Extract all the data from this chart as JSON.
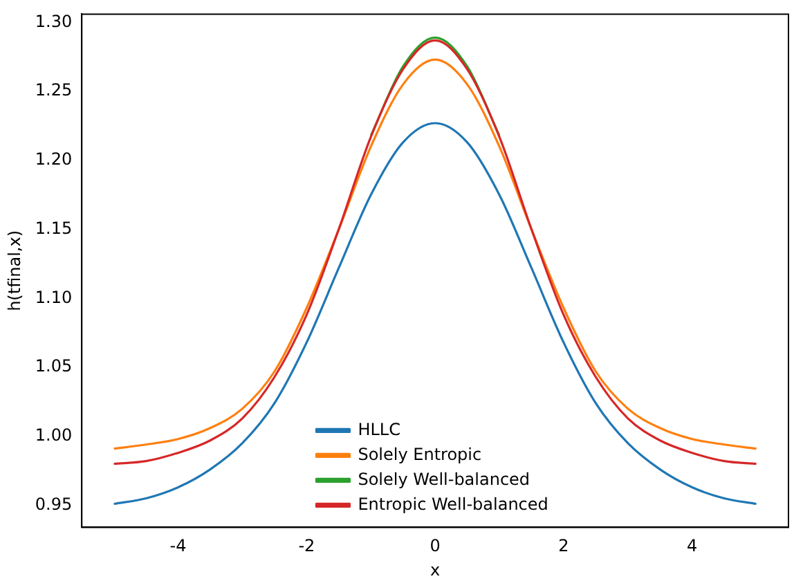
{
  "chart_data": {
    "type": "line",
    "xlabel": "x",
    "ylabel": "h(tfinal,x)",
    "x": [
      -5,
      -4.5,
      -4,
      -3.5,
      -3,
      -2.5,
      -2,
      -1.5,
      -1,
      -0.5,
      0,
      0.5,
      1,
      1.5,
      2,
      2.5,
      3,
      3.5,
      4,
      4.5,
      5
    ],
    "series": [
      {
        "name": "HLLC",
        "color": "#1f77b4",
        "values": [
          0.951,
          0.955,
          0.963,
          0.976,
          0.995,
          1.024,
          1.068,
          1.122,
          1.175,
          1.213,
          1.227,
          1.213,
          1.175,
          1.122,
          1.068,
          1.024,
          0.995,
          0.976,
          0.963,
          0.955,
          0.951
        ]
      },
      {
        "name": "Solely Entropic",
        "color": "#ff7f0e",
        "values": [
          0.991,
          0.994,
          0.998,
          1.006,
          1.02,
          1.047,
          1.093,
          1.15,
          1.21,
          1.255,
          1.273,
          1.255,
          1.21,
          1.15,
          1.093,
          1.047,
          1.02,
          1.006,
          0.998,
          0.994,
          0.991
        ]
      },
      {
        "name": "Solely Well-balanced",
        "color": "#2ca02c",
        "values": [
          null,
          null,
          null,
          null,
          null,
          null,
          null,
          null,
          1.218,
          1.268,
          1.289,
          1.268,
          1.218,
          null,
          null,
          null,
          null,
          null,
          null,
          null,
          null
        ]
      },
      {
        "name": "Entropic Well-balanced",
        "color": "#d62728",
        "values": [
          0.98,
          0.982,
          0.988,
          0.997,
          1.013,
          1.043,
          1.088,
          1.15,
          1.217,
          1.266,
          1.287,
          1.266,
          1.217,
          1.15,
          1.088,
          1.043,
          1.013,
          0.997,
          0.988,
          0.982,
          0.98
        ]
      }
    ],
    "xlim": [
      -5.5,
      5.5
    ],
    "xticks": [
      -4,
      -2,
      0,
      2,
      4
    ],
    "ylim": [
      0.934,
      1.306
    ],
    "yticks": [
      0.95,
      {
        "value": 1,
        "label": "1.00"
      },
      1.05,
      {
        "value": 1.1,
        "label": "1.10"
      },
      1.15,
      {
        "value": 1.2,
        "label": "1.20"
      },
      1.25,
      {
        "value": 1.3,
        "label": "1.30"
      }
    ],
    "grid": false,
    "legend": "bottom",
    "marker": "none",
    "line_style": "solid"
  }
}
